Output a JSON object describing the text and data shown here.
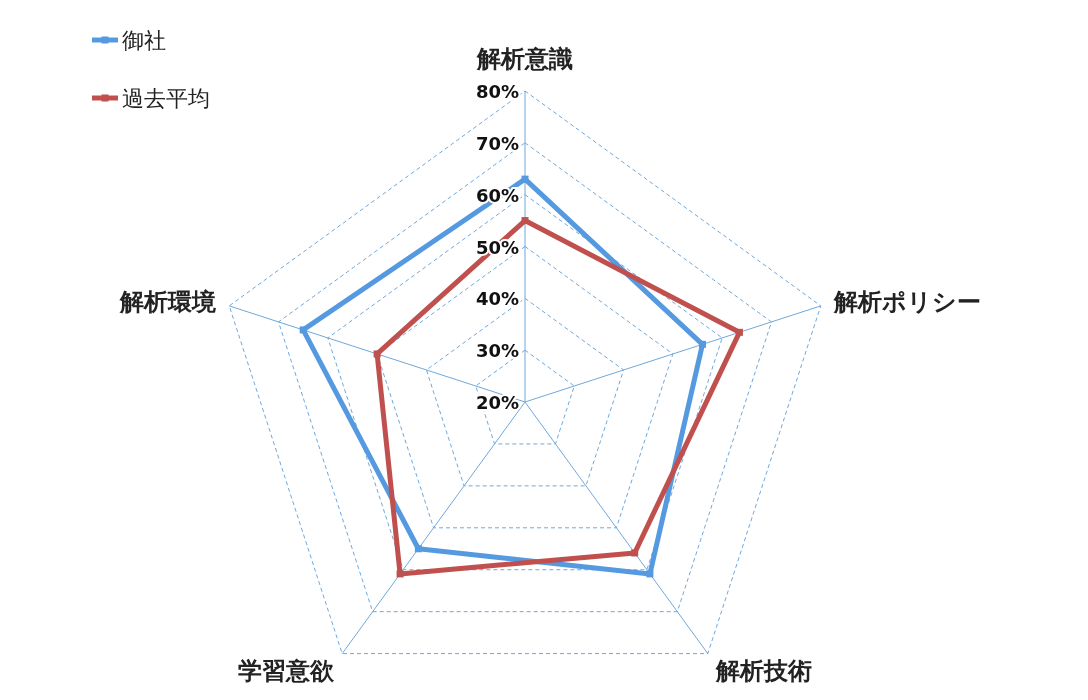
{
  "chart_data": {
    "type": "radar",
    "categories": [
      "解析意識",
      "解析ポリシー",
      "解析技術",
      "学習意欲",
      "解析環境"
    ],
    "series": [
      {
        "name": "御社",
        "color": "#559ae0",
        "values": [
          63,
          56,
          61,
          55,
          65
        ]
      },
      {
        "name": "過去平均",
        "color": "#c0504d",
        "values": [
          55,
          63.5,
          56,
          61,
          50
        ]
      }
    ],
    "ylim": [
      20,
      80
    ],
    "yticks": [
      {
        "value": 20,
        "label": "20%"
      },
      {
        "value": 30,
        "label": "30%"
      },
      {
        "value": 40,
        "label": "40%"
      },
      {
        "value": 50,
        "label": "50%"
      },
      {
        "value": 60,
        "label": "60%"
      },
      {
        "value": 70,
        "label": "70%"
      },
      {
        "value": 80,
        "label": "80%"
      }
    ],
    "grid": true,
    "legend": "top left",
    "marker": "square",
    "line_style": "solid"
  }
}
